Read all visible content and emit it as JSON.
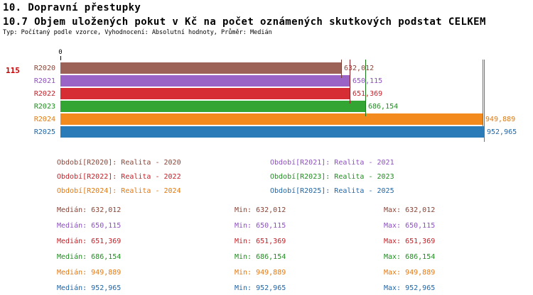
{
  "header": {
    "title": "10. Dopravní přestupky",
    "subtitle": "10.7 Objem uložených pokut v Kč na počet oznámených skutkových podstat CELKEM",
    "meta": "Typ: Počítaný podle vzorce, Vyhodnocení: Absolutní hodnoty, Průměr: Medián"
  },
  "row_number": "115",
  "accent_row_number_color": "#cc0000",
  "chart_data": {
    "type": "bar",
    "orientation": "horizontal",
    "title": "10.7 Objem uložených pokut v Kč na počet oznámených skutkových podstat CELKEM",
    "xlabel": "",
    "ylabel": "",
    "xlim": [
      0,
      952965
    ],
    "grid": false,
    "axis_origin_label": "0",
    "categories": [
      "R2020",
      "R2021",
      "R2022",
      "R2023",
      "R2024",
      "R2025"
    ],
    "values": [
      632012,
      650115,
      651369,
      686154,
      949889,
      952965
    ],
    "value_labels": [
      "632,012",
      "650,115",
      "651,369",
      "686,154",
      "949,889",
      "952,965"
    ],
    "colors": {
      "bar": [
        "#9c6257",
        "#9a63c6",
        "#d62d34",
        "#33a532",
        "#f28a1e",
        "#2b7bb9"
      ],
      "text": [
        "#8a4437",
        "#8d4fc0",
        "#c32028",
        "#1e8c1e",
        "#e2790f",
        "#1f66a8"
      ],
      "line": [
        "#7a4037",
        "#7b42ad",
        "#8f1b22",
        "#177a17",
        "#b06510",
        "#7f7f00"
      ]
    },
    "legend_position": "below",
    "legend": [
      "Období[R2020]: Realita - 2020",
      "Období[R2021]: Realita - 2021",
      "Období[R2022]: Realita - 2022",
      "Období[R2023]: Realita - 2023",
      "Období[R2024]: Realita - 2024",
      "Období[R2025]: Realita - 2025"
    ],
    "stats": [
      {
        "median": "Medián: 632,012",
        "min": "Min: 632,012",
        "max": "Max: 632,012"
      },
      {
        "median": "Medián: 650,115",
        "min": "Min: 650,115",
        "max": "Max: 650,115"
      },
      {
        "median": "Medián: 651,369",
        "min": "Min: 651,369",
        "max": "Max: 651,369"
      },
      {
        "median": "Medián: 686,154",
        "min": "Min: 686,154",
        "max": "Max: 686,154"
      },
      {
        "median": "Medián: 949,889",
        "min": "Min: 949,889",
        "max": "Max: 949,889"
      },
      {
        "median": "Medián: 952,965",
        "min": "Min: 952,965",
        "max": "Max: 952,965"
      }
    ]
  }
}
